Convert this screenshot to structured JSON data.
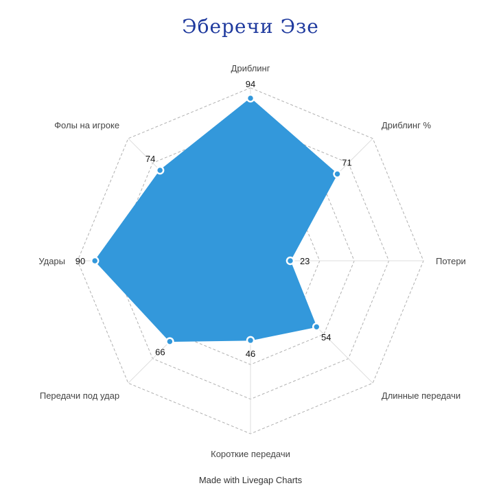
{
  "chart_data": {
    "type": "radar",
    "title": "Эберечи Эзе",
    "axes": [
      "Дриблинг",
      "Дриблинг %",
      "Потери",
      "Длинные передачи",
      "Короткие передачи",
      "Передачи под удар",
      "Удары",
      "Фолы на игроке"
    ],
    "values": [
      94,
      71,
      23,
      54,
      46,
      66,
      90,
      74
    ],
    "range": [
      0,
      100
    ],
    "grid_levels": 5,
    "grid": true,
    "legend": "none"
  },
  "footer": "Made with Livegap Charts",
  "colors": {
    "fill": "#3398db",
    "point_fill": "#3398db",
    "point_stroke": "#ffffff",
    "grid": "#b0b0b0",
    "title": "#1f3a9e"
  }
}
